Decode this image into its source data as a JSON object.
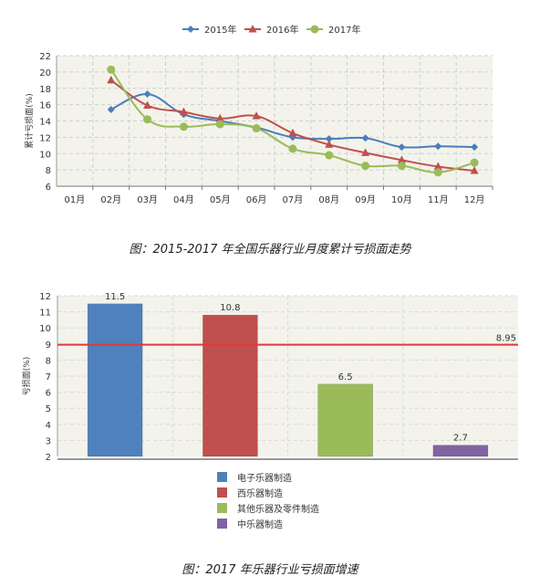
{
  "chart_data": [
    {
      "type": "line",
      "title": "",
      "ylabel": "累计亏损面(%)",
      "xlabel": "",
      "categories": [
        "01月",
        "02月",
        "03月",
        "04月",
        "05月",
        "06月",
        "07月",
        "08月",
        "09月",
        "10月",
        "11月",
        "12月"
      ],
      "ylim": [
        6,
        22
      ],
      "yticks": [
        6,
        8,
        10,
        12,
        14,
        16,
        18,
        20,
        22
      ],
      "grid": true,
      "legend": "top-center",
      "series": [
        {
          "name": "2015年",
          "color": "#4a7ebb",
          "marker": "diamond",
          "values": [
            null,
            15.4,
            17.3,
            14.8,
            14.0,
            13.2,
            12.0,
            11.8,
            11.9,
            10.8,
            10.9,
            10.8
          ]
        },
        {
          "name": "2016年",
          "color": "#c0504d",
          "marker": "triangle",
          "values": [
            null,
            19.0,
            15.9,
            15.1,
            14.3,
            14.6,
            12.5,
            11.1,
            10.1,
            9.2,
            8.4,
            7.9
          ]
        },
        {
          "name": "2017年",
          "color": "#9bbb59",
          "marker": "circle",
          "values": [
            null,
            20.3,
            14.2,
            13.3,
            13.6,
            13.1,
            10.6,
            9.8,
            8.5,
            8.5,
            7.7,
            8.9
          ]
        }
      ]
    },
    {
      "type": "bar",
      "title": "",
      "ylabel": "亏损面(%)",
      "xlabel": "",
      "ylim": [
        2,
        12
      ],
      "yticks": [
        2,
        3,
        4,
        5,
        6,
        7,
        8,
        9,
        10,
        11,
        12
      ],
      "legend": "bottom",
      "categories": [
        "电子乐器制造",
        "西乐器制造",
        "其他乐器及零件制造",
        "中乐器制造"
      ],
      "values": [
        11.5,
        10.8,
        6.5,
        2.7
      ],
      "value_labels": [
        "11.5",
        "10.8",
        "6.5",
        "2.7"
      ],
      "colors": [
        "#4f81bd",
        "#c0504d",
        "#9bbb59",
        "#8064a2"
      ],
      "reference_line": {
        "value": 8.95,
        "label": "8.95",
        "color": "#e03a3a"
      }
    }
  ],
  "captions": {
    "chart1": "图：2015-2017 年全国乐器行业月度累计亏损面走势",
    "chart2": "图：2017 年乐器行业亏损面增速"
  }
}
